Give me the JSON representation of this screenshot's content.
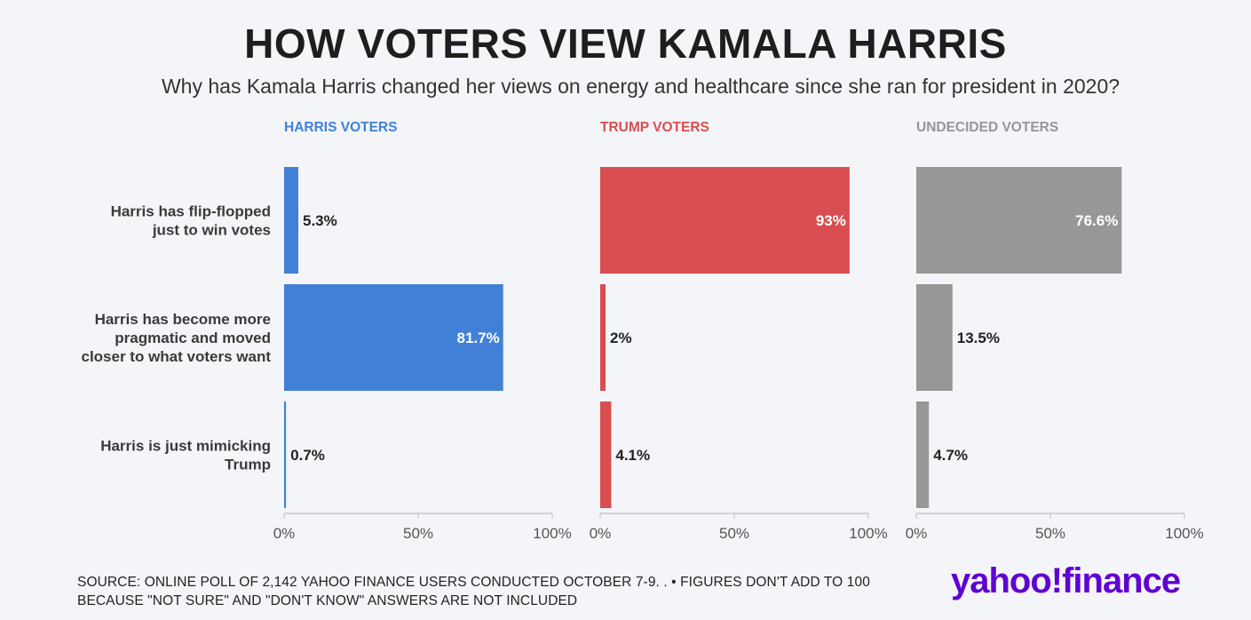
{
  "title": "HOW VOTERS VIEW KAMALA HARRIS",
  "subtitle": "Why has Kamala Harris changed her views on energy and healthcare since she ran for president in 2020?",
  "footer": {
    "line1": "SOURCE: ONLINE POLL OF 2,142 YAHOO FINANCE USERS CONDUCTED OCTOBER 7-9. . • FIGURES DON'T ADD TO 100",
    "line2": "BECAUSE \"NOT SURE\" AND \"DON'T KNOW\" ANSWERS ARE NOT INCLUDED"
  },
  "logo": "yahoo!finance",
  "colors": {
    "harris": "#4280d8",
    "trump": "#d84e50",
    "undecided": "#969796",
    "logo": "#6001d2"
  },
  "chart_data": {
    "type": "bar",
    "orientation": "horizontal",
    "categories": [
      [
        "Harris has flip-flopped",
        "just to win votes"
      ],
      [
        "Harris has become more",
        "pragmatic and moved",
        "closer to what voters want"
      ],
      [
        "Harris is just mimicking",
        "Trump"
      ]
    ],
    "xlim": [
      0,
      100
    ],
    "ticks": [
      "0%",
      "50%",
      "100%"
    ],
    "series": [
      {
        "name": "HARRIS VOTERS",
        "color": "#4280d8",
        "values": [
          5.3,
          81.7,
          0.7
        ],
        "labels": [
          "5.3%",
          "81.7%",
          "0.7%"
        ]
      },
      {
        "name": "TRUMP VOTERS",
        "color": "#d84e50",
        "values": [
          93,
          2,
          4.1
        ],
        "labels": [
          "93%",
          "2%",
          "4.1%"
        ]
      },
      {
        "name": "UNDECIDED VOTERS",
        "color": "#969796",
        "values": [
          76.6,
          13.5,
          4.7
        ],
        "labels": [
          "76.6%",
          "13.5%",
          "4.7%"
        ]
      }
    ]
  }
}
